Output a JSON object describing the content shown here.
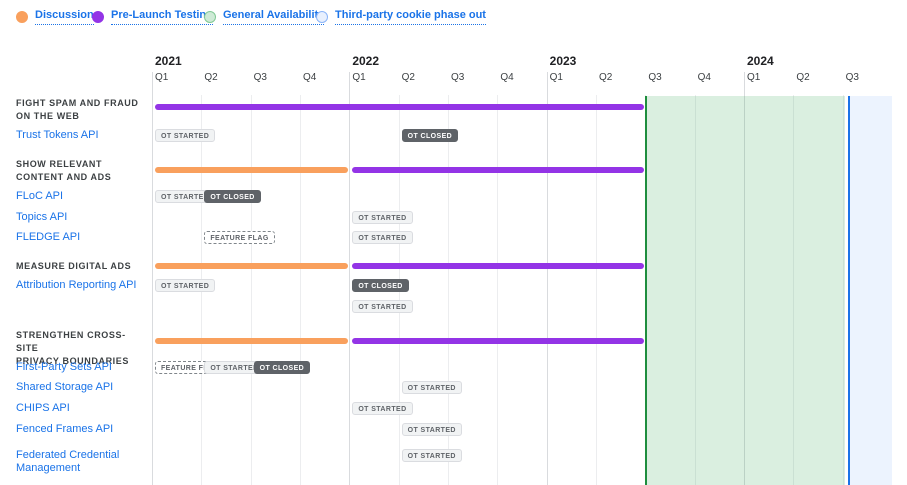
{
  "legend": {
    "items": [
      {
        "label": "Discussion",
        "swatch": "discussion",
        "fill": "#F9A05D",
        "border": "#F9A05D"
      },
      {
        "label": "Pre-Launch Testing",
        "swatch": "testing",
        "fill": "#9334E6",
        "border": "#9334E6"
      },
      {
        "label": "General Availability",
        "swatch": "ga",
        "fill": "#CEEAD6",
        "border": "#81C995"
      },
      {
        "label": "Third-party cookie phase out",
        "swatch": "cookie",
        "fill": "#E8F0FE",
        "border": "#8AB4F8"
      }
    ]
  },
  "colors": {
    "discussion": "#F9A05D",
    "testing": "#9334E6",
    "ga_fill": "#CEEAD6",
    "ga_border": "#1E8E3E",
    "cookie_fill": "#E8F0FE",
    "cookie_border": "#1A73E8",
    "link": "#1A73E8"
  },
  "timeline": {
    "years": [
      {
        "label": "2021",
        "quarters": [
          "Q1",
          "Q2",
          "Q3",
          "Q4"
        ]
      },
      {
        "label": "2022",
        "quarters": [
          "Q1",
          "Q2",
          "Q3",
          "Q4"
        ]
      },
      {
        "label": "2023",
        "quarters": [
          "Q1",
          "Q2",
          "Q3",
          "Q4"
        ]
      },
      {
        "label": "2024",
        "quarters": [
          "Q1",
          "Q2",
          "Q3"
        ]
      }
    ]
  },
  "chart_data": {
    "type": "gantt",
    "time_axis": {
      "start": "2021-Q1",
      "end": "2024-Q3",
      "unit": "quarter"
    },
    "legend_position": "top",
    "bands": [
      {
        "name": "General Availability",
        "kind": "ga",
        "from": "2023-Q3",
        "to": "2024-Q2"
      },
      {
        "name": "Third-party cookie phase out",
        "kind": "cookie",
        "from": "2024-Q3",
        "to": "2024-Q3"
      }
    ],
    "sections": [
      {
        "header": "FIGHT SPAM AND FRAUD\nON THE WEB",
        "phases": [
          {
            "phase": "Pre-Launch Testing",
            "from": "2021-Q1",
            "to": "2023-Q2"
          }
        ],
        "rows": [
          {
            "label": "Trust Tokens API",
            "badges": [
              {
                "label": "OT STARTED",
                "variant": "light",
                "at": "2021-Q1",
                "line": 0
              },
              {
                "label": "OT CLOSED",
                "variant": "dark",
                "at": "2022-Q2",
                "line": 0
              }
            ]
          }
        ]
      },
      {
        "header": "SHOW RELEVANT\nCONTENT AND ADS",
        "phases": [
          {
            "phase": "Discussion",
            "from": "2021-Q1",
            "to": "2021-Q4"
          },
          {
            "phase": "Pre-Launch Testing",
            "from": "2022-Q1",
            "to": "2023-Q2"
          }
        ],
        "rows": [
          {
            "label": "FLoC API",
            "badges": [
              {
                "label": "OT STARTED",
                "variant": "light",
                "at": "2021-Q1",
                "line": 0
              },
              {
                "label": "OT CLOSED",
                "variant": "dark",
                "at": "2021-Q2",
                "line": 0
              }
            ]
          },
          {
            "label": "Topics API",
            "badges": [
              {
                "label": "OT STARTED",
                "variant": "light",
                "at": "2022-Q1",
                "line": 0
              }
            ]
          },
          {
            "label": "FLEDGE API",
            "badges": [
              {
                "label": "FEATURE FLAG",
                "variant": "flag",
                "at": "2021-Q2",
                "line": 0
              },
              {
                "label": "OT STARTED",
                "variant": "light",
                "at": "2022-Q1",
                "line": 0
              }
            ]
          }
        ]
      },
      {
        "header": "MEASURE DIGITAL ADS",
        "phases": [
          {
            "phase": "Discussion",
            "from": "2021-Q1",
            "to": "2021-Q4"
          },
          {
            "phase": "Pre-Launch Testing",
            "from": "2022-Q1",
            "to": "2023-Q2"
          }
        ],
        "rows": [
          {
            "label": "Attribution Reporting API",
            "badges": [
              {
                "label": "OT STARTED",
                "variant": "light",
                "at": "2021-Q1",
                "line": 0
              },
              {
                "label": "OT CLOSED",
                "variant": "dark",
                "at": "2022-Q1",
                "line": 0
              },
              {
                "label": "OT STARTED",
                "variant": "light",
                "at": "2022-Q1",
                "line": 1
              }
            ]
          }
        ]
      },
      {
        "header": "STRENGTHEN CROSS-SITE\nPRIVACY BOUNDARIES",
        "phases": [
          {
            "phase": "Discussion",
            "from": "2021-Q1",
            "to": "2021-Q4"
          },
          {
            "phase": "Pre-Launch Testing",
            "from": "2022-Q1",
            "to": "2023-Q2"
          }
        ],
        "rows": [
          {
            "label": "First-Party Sets API",
            "badges": [
              {
                "label": "FEATURE FLAG",
                "variant": "flag",
                "at": "2021-Q1",
                "line": 0
              },
              {
                "label": "OT STARTED",
                "variant": "light",
                "at": "2021-Q2",
                "line": 0
              },
              {
                "label": "OT CLOSED",
                "variant": "dark",
                "at": "2021-Q3",
                "line": 0
              }
            ]
          },
          {
            "label": "Shared Storage API",
            "badges": [
              {
                "label": "OT STARTED",
                "variant": "light",
                "at": "2022-Q2",
                "line": 0
              }
            ]
          },
          {
            "label": "CHIPS API",
            "badges": [
              {
                "label": "OT STARTED",
                "variant": "light",
                "at": "2022-Q1",
                "line": 0
              }
            ]
          },
          {
            "label": "Fenced Frames API",
            "badges": [
              {
                "label": "OT STARTED",
                "variant": "light",
                "at": "2022-Q2",
                "line": 0
              }
            ]
          },
          {
            "label": "Federated Credential\nManagement",
            "badges": [
              {
                "label": "OT STARTED",
                "variant": "light",
                "at": "2022-Q2",
                "line": 0
              }
            ]
          }
        ]
      }
    ]
  }
}
